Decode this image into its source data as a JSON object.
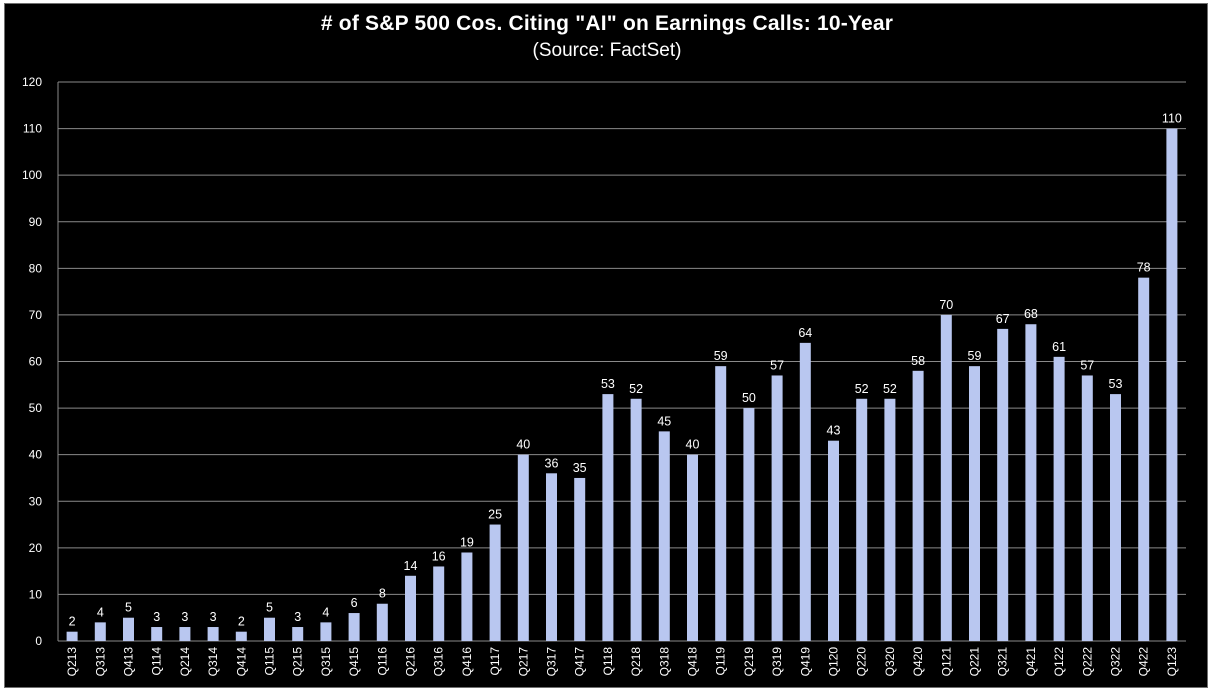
{
  "chart_data": {
    "type": "bar",
    "title": "# of S&P 500 Cos. Citing \"AI\" on Earnings Calls: 10-Year",
    "subtitle": "(Source: FactSet)",
    "xlabel": "",
    "ylabel": "",
    "ylim": [
      0,
      120
    ],
    "yticks": [
      0,
      10,
      20,
      30,
      40,
      50,
      60,
      70,
      80,
      90,
      100,
      110,
      120
    ],
    "grid": true,
    "categories": [
      "Q213",
      "Q313",
      "Q413",
      "Q114",
      "Q214",
      "Q314",
      "Q414",
      "Q115",
      "Q215",
      "Q315",
      "Q415",
      "Q116",
      "Q216",
      "Q316",
      "Q416",
      "Q117",
      "Q217",
      "Q317",
      "Q417",
      "Q118",
      "Q218",
      "Q318",
      "Q418",
      "Q119",
      "Q219",
      "Q319",
      "Q419",
      "Q120",
      "Q220",
      "Q320",
      "Q420",
      "Q121",
      "Q221",
      "Q321",
      "Q421",
      "Q122",
      "Q222",
      "Q322",
      "Q422",
      "Q123"
    ],
    "values": [
      2,
      4,
      5,
      3,
      3,
      3,
      2,
      5,
      3,
      4,
      6,
      8,
      14,
      16,
      19,
      25,
      40,
      36,
      35,
      53,
      52,
      45,
      40,
      59,
      50,
      57,
      64,
      43,
      52,
      52,
      58,
      70,
      59,
      67,
      68,
      61,
      57,
      53,
      78,
      110
    ],
    "colors": {
      "background": "#000000",
      "bar": "#b9c7f0",
      "grid": "#8a8a8a",
      "text": "#ffffff"
    }
  }
}
